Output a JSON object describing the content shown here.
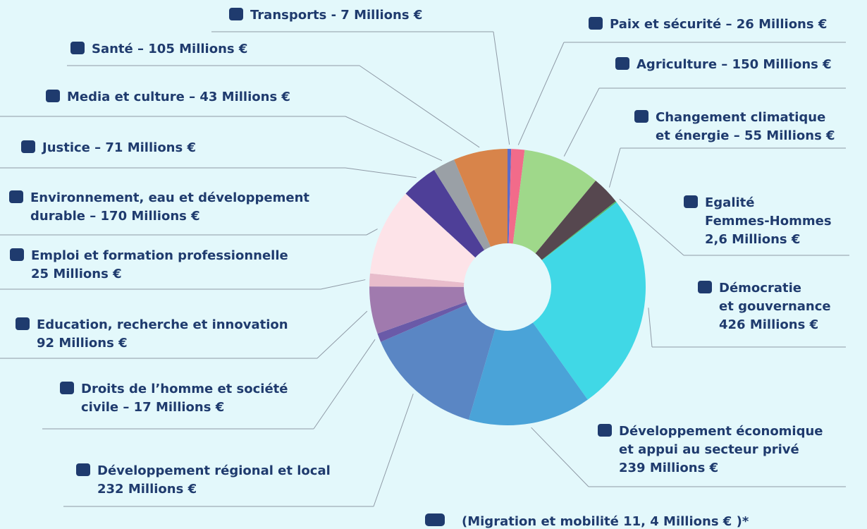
{
  "chart_data": {
    "type": "pie",
    "labels": [
      [
        "Transports - 7 Millions €"
      ],
      [
        "Paix et sécurité – 26 Millions €"
      ],
      [
        "Agriculture – 150 Millions €"
      ],
      [
        "Changement climatique",
        "et énergie – 55 Millions €"
      ],
      [
        "Egalité",
        "Femmes-Hommes",
        "2,6 Millions €"
      ],
      [
        "Démocratie",
        "et gouvernance",
        "426 Millions €"
      ],
      [
        "Développement économique",
        "et appui au secteur privé",
        "239 Millions €"
      ],
      [
        "Développement régional et local",
        "232 Millions €"
      ],
      [
        "Droits de l’homme et société",
        "civile – 17 Millions €"
      ],
      [
        "Education, recherche et innovation",
        "92 Millions €"
      ],
      [
        "Emploi et formation professionnelle",
        "25 Millions €"
      ],
      [
        "Environnement, eau et développement",
        "durable – 170 Millions €"
      ],
      [
        "Justice – 71 Millions €"
      ],
      [
        "Media et culture – 43 Millions €"
      ],
      [
        "Santé – 105  Millions €"
      ]
    ],
    "values": [
      7,
      26,
      150,
      55,
      2.6,
      426,
      239,
      232,
      17,
      92,
      25,
      170,
      71,
      43,
      105
    ],
    "colors": [
      "#5b6bc9",
      "#f26b8a",
      "#9fd88a",
      "#56474f",
      "#52b86a",
      "#40d8e6",
      "#4aa3d8",
      "#5a86c4",
      "#6a5aa8",
      "#a07aae",
      "#e8bccb",
      "#fde3e8",
      "#4e3f98",
      "#9aa0a6",
      "#d8844a"
    ],
    "annotation": "(Migration et mobilité 11, 4 Millions € )*"
  }
}
